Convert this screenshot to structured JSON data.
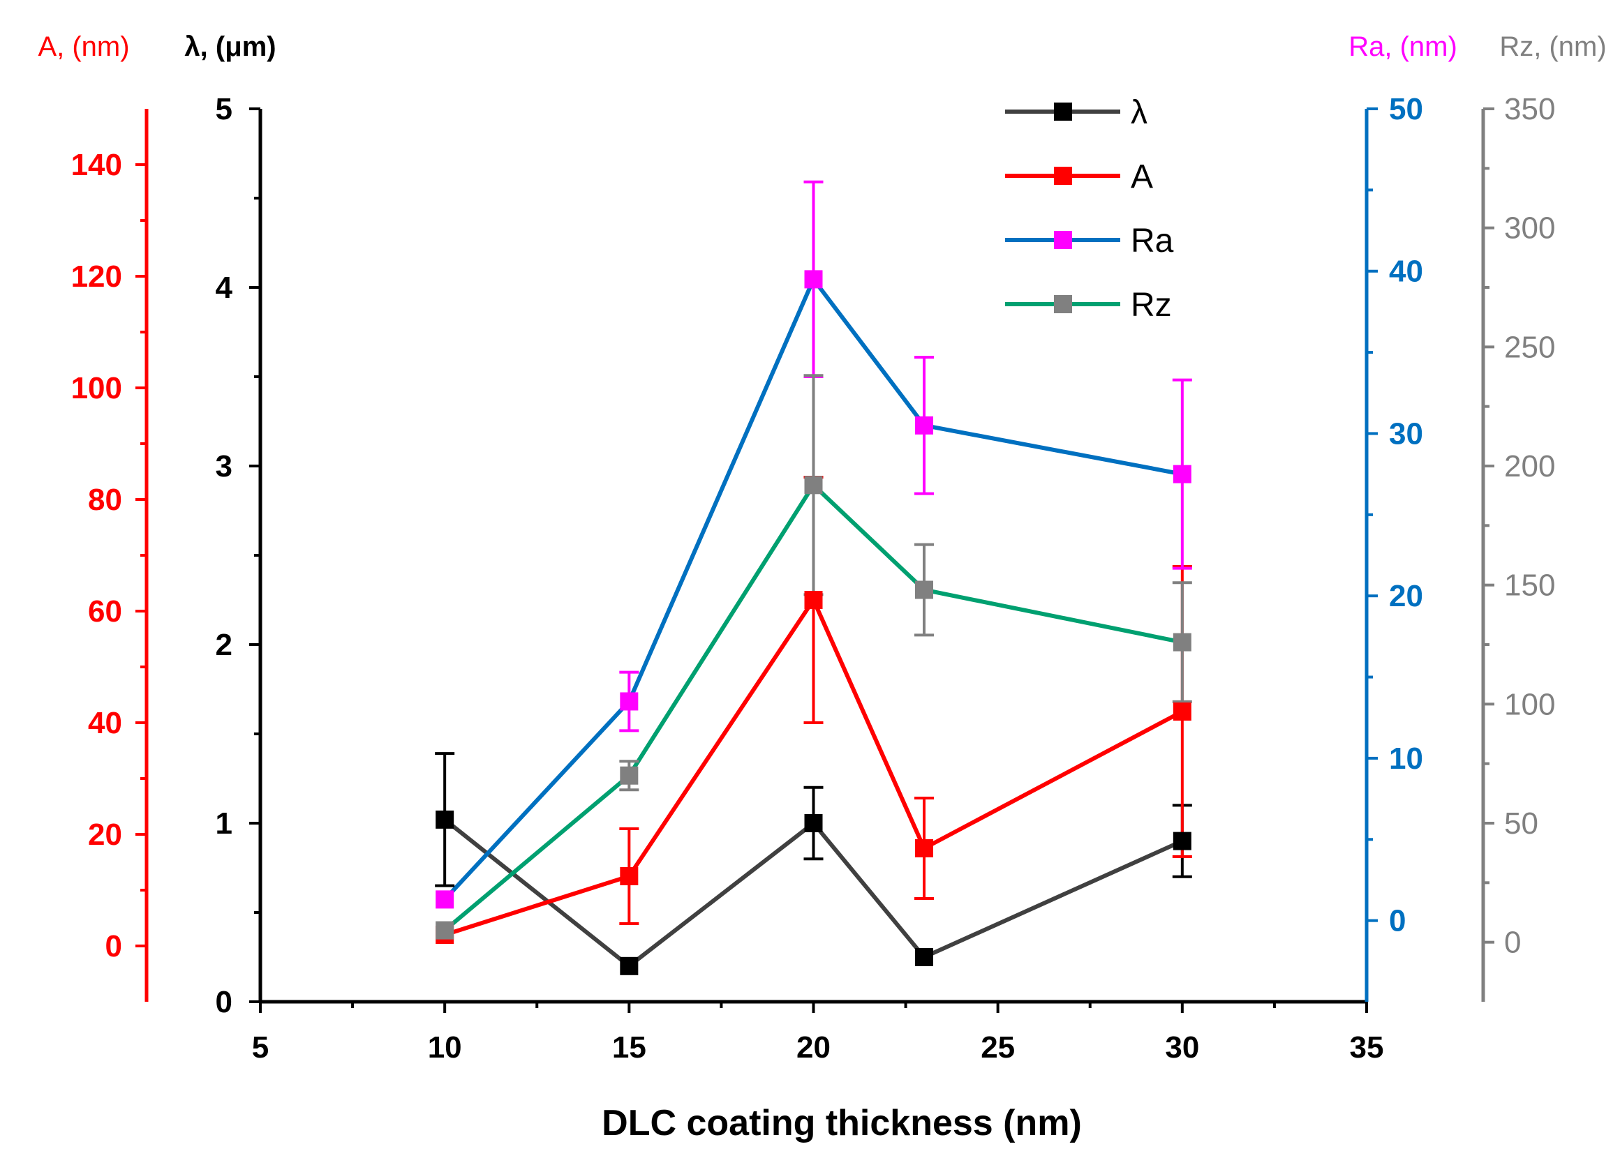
{
  "chart_data": {
    "type": "line",
    "xlabel": "DLC coating thickness (nm)",
    "xlim": [
      5,
      35
    ],
    "xticks": [
      5,
      10,
      15,
      20,
      25,
      30,
      35
    ],
    "x": [
      10,
      15,
      20,
      23,
      30
    ],
    "legend_placement": "top-right",
    "axes": [
      {
        "id": "A",
        "label": "A, (nm)",
        "color": "#ff0000",
        "ylim": [
          -10,
          150
        ],
        "ticks": [
          0,
          20,
          40,
          60,
          80,
          100,
          120,
          140
        ]
      },
      {
        "id": "lambda",
        "label": "λ, (μm)",
        "color": "#000000",
        "ylim": [
          0,
          5
        ],
        "ticks": [
          0,
          1,
          2,
          3,
          4,
          5
        ]
      },
      {
        "id": "Ra",
        "label": "Ra, (nm)",
        "color": "#0070c0",
        "ylim": [
          -5,
          50
        ],
        "ticks": [
          0,
          10,
          20,
          30,
          40,
          50
        ]
      },
      {
        "id": "Rz",
        "label": "Rz, (nm)",
        "color": "#808080",
        "ylim": [
          -25,
          350
        ],
        "ticks": [
          0,
          50,
          100,
          150,
          200,
          250,
          300,
          350
        ]
      }
    ],
    "series": [
      {
        "name": "λ",
        "axis": "lambda",
        "line_color": "#404040",
        "marker_color": "#000000",
        "values": [
          1.02,
          0.2,
          1.0,
          0.25,
          0.9
        ],
        "errors": [
          0.37,
          0.0,
          0.2,
          0.0,
          0.2
        ]
      },
      {
        "name": "A",
        "axis": "A",
        "line_color": "#ff0000",
        "marker_color": "#ff0000",
        "values": [
          2,
          12.5,
          62,
          17.5,
          42
        ],
        "errors": [
          0,
          8.5,
          22,
          9,
          26
        ]
      },
      {
        "name": "Ra",
        "axis": "Ra",
        "line_color": "#0070c0",
        "marker_color": "#ff00ff",
        "values": [
          1.3,
          13.5,
          39.5,
          30.5,
          27.5
        ],
        "errors": [
          0,
          1.8,
          6,
          4.2,
          5.8
        ]
      },
      {
        "name": "Rz",
        "axis": "Rz",
        "line_color": "#00a070",
        "marker_color": "#808080",
        "values": [
          5,
          70,
          192,
          148,
          126
        ],
        "errors": [
          0,
          6,
          46,
          19,
          25
        ]
      }
    ]
  }
}
